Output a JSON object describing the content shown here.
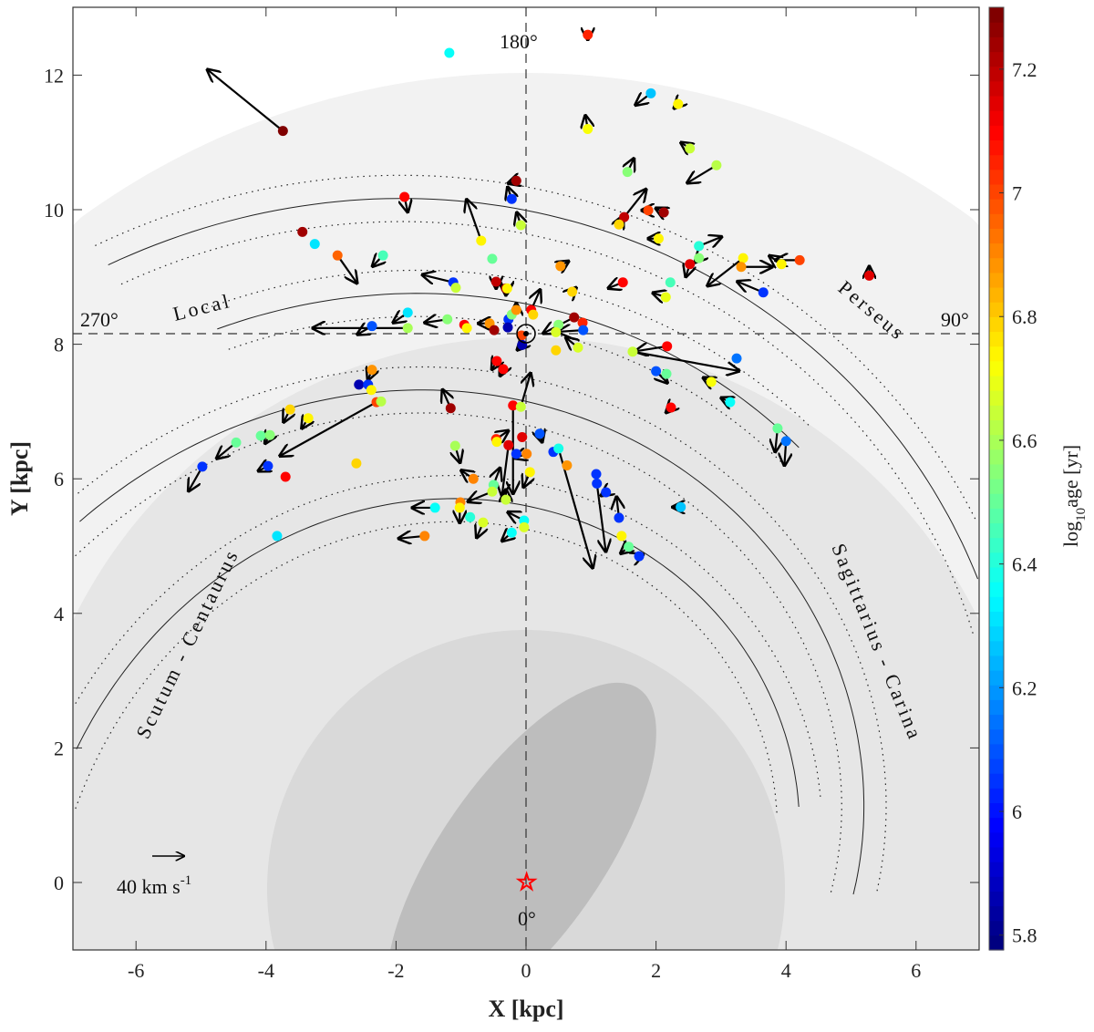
{
  "chart_data": {
    "type": "scatter",
    "xlabel": "X [kpc]",
    "ylabel": "Y [kpc]",
    "xlim": [
      -7,
      7
    ],
    "ylim": [
      -1,
      13
    ],
    "xticks": [
      "-6",
      "-4",
      "-2",
      "0",
      "2",
      "4",
      "6"
    ],
    "yticks": [
      "0",
      "2",
      "4",
      "6",
      "8",
      "10",
      "12"
    ],
    "colorbar": {
      "label_main": "log",
      "label_sub": "10",
      "label_rest": "age [yr]",
      "range": [
        5.776,
        7.3
      ],
      "ticks": [
        "5.8",
        "6",
        "6.2",
        "6.4",
        "6.6",
        "6.8",
        "7",
        "7.2"
      ],
      "colormap": "jet"
    },
    "sun": {
      "x": 0,
      "y": 8.15
    },
    "galactic_center": {
      "x": 0,
      "y": 0,
      "color": "#ff0000"
    },
    "longitude_labels": {
      "l180": "180°",
      "l270": "270°",
      "l90": "90°",
      "l0": "0°"
    },
    "arm_labels": {
      "local": "Local",
      "perseus": "Perseus",
      "sagittarius": "Sagittarius - Carina",
      "scutum": "Scutum - Centaurus"
    },
    "arms": [
      {
        "name": "Perseus",
        "r_at_sun_dir": 9.99,
        "tan_pitch": 0.188,
        "range_deg": [
          -35,
          62
        ]
      },
      {
        "name": "Local",
        "r_at_sun_dir": 8.6,
        "tan_pitch": 0.19,
        "range_deg": [
          -30,
          33
        ]
      },
      {
        "name": "Sagittarius-Carina",
        "r_at_sun_dir": 7.15,
        "tan_pitch": 0.218,
        "range_deg": [
          -60,
          92
        ]
      },
      {
        "name": "Scutum-Centaurus",
        "r_at_sun_dir": 5.6,
        "tan_pitch": 0.194,
        "range_deg": [
          -82,
          75
        ]
      }
    ],
    "scale_arrow": {
      "value_kms": 40,
      "label": "40 km s",
      "label_exp": "-1"
    },
    "fields": [
      "x_kpc",
      "y_kpc",
      "log10_age",
      "vx_kms",
      "vy_kms"
    ],
    "points": [
      [
        -3.74,
        11.17,
        7.3,
        -93,
        73
      ],
      [
        -1.18,
        12.33,
        6.35,
        0,
        0
      ],
      [
        0.95,
        12.6,
        7.05,
        0,
        -6
      ],
      [
        1.92,
        11.73,
        6.25,
        -19,
        -14
      ],
      [
        2.34,
        11.57,
        6.75,
        -5,
        -5
      ],
      [
        0.95,
        11.2,
        6.72,
        -3,
        16
      ],
      [
        2.52,
        10.91,
        6.65,
        -11,
        7
      ],
      [
        2.93,
        10.66,
        6.62,
        -36,
        -21
      ],
      [
        1.56,
        10.56,
        6.55,
        8,
        16
      ],
      [
        -0.15,
        10.43,
        7.25,
        -10,
        -3
      ],
      [
        -0.22,
        10.16,
        6.05,
        -5,
        14
      ],
      [
        -1.87,
        10.19,
        7.1,
        4,
        -18
      ],
      [
        -0.08,
        9.77,
        6.65,
        -5,
        15
      ],
      [
        1.51,
        9.89,
        7.2,
        27,
        33
      ],
      [
        1.88,
        9.99,
        7.0,
        -8,
        0
      ],
      [
        2.12,
        9.96,
        7.25,
        -10,
        5
      ],
      [
        1.43,
        9.78,
        6.8,
        5,
        10
      ],
      [
        2.04,
        9.57,
        6.75,
        -13,
        0
      ],
      [
        -3.44,
        9.67,
        7.25,
        0,
        0
      ],
      [
        -3.25,
        9.49,
        6.3,
        0,
        0
      ],
      [
        -2.9,
        9.32,
        6.95,
        24,
        -33
      ],
      [
        -2.2,
        9.32,
        6.45,
        -13,
        -13
      ],
      [
        -0.69,
        9.54,
        6.75,
        -18,
        49
      ],
      [
        -0.52,
        9.27,
        6.5,
        0,
        0
      ],
      [
        2.66,
        9.46,
        6.4,
        28,
        11
      ],
      [
        2.66,
        9.28,
        6.55,
        -5,
        -5
      ],
      [
        2.52,
        9.19,
        7.15,
        -5,
        -15
      ],
      [
        3.34,
        9.28,
        6.75,
        -44,
        -33
      ],
      [
        3.31,
        9.15,
        6.9,
        38,
        0
      ],
      [
        3.93,
        9.19,
        6.75,
        -15,
        10
      ],
      [
        4.21,
        9.25,
        7.0,
        -30,
        0
      ],
      [
        5.28,
        9.02,
        7.15,
        0,
        11
      ],
      [
        3.65,
        8.77,
        6.05,
        -32,
        13
      ],
      [
        -1.12,
        8.92,
        6.05,
        -38,
        9
      ],
      [
        -1.08,
        8.84,
        6.65,
        0,
        0
      ],
      [
        -0.31,
        8.83,
        7.25,
        0,
        -8
      ],
      [
        -0.46,
        8.93,
        7.2,
        0,
        -8
      ],
      [
        -0.29,
        8.83,
        6.75,
        0,
        -6
      ],
      [
        0.53,
        9.16,
        6.9,
        10,
        6
      ],
      [
        0.71,
        8.78,
        6.8,
        5,
        5
      ],
      [
        1.49,
        8.92,
        7.1,
        -18,
        -7
      ],
      [
        2.22,
        8.92,
        6.45,
        0,
        0
      ],
      [
        2.15,
        8.7,
        6.7,
        -16,
        5
      ],
      [
        -1.82,
        8.47,
        6.3,
        -18,
        -12
      ],
      [
        -1.82,
        8.24,
        6.6,
        -117,
        0
      ],
      [
        -2.37,
        8.27,
        6.1,
        -18,
        -10
      ],
      [
        -1.21,
        8.37,
        6.55,
        -28,
        -4
      ],
      [
        -0.95,
        8.29,
        7.1,
        0,
        0
      ],
      [
        -0.91,
        8.24,
        6.75,
        0,
        0
      ],
      [
        -0.56,
        8.31,
        6.9,
        -14,
        0
      ],
      [
        -0.49,
        8.21,
        7.25,
        0,
        0
      ],
      [
        -0.27,
        8.37,
        6.05,
        0,
        0
      ],
      [
        -0.28,
        8.25,
        5.85,
        0,
        0
      ],
      [
        -0.22,
        8.44,
        6.55,
        0,
        0
      ],
      [
        -0.15,
        8.51,
        6.9,
        0,
        8
      ],
      [
        0.08,
        8.51,
        7.1,
        11,
        24
      ],
      [
        0.11,
        8.44,
        6.8,
        0,
        0
      ],
      [
        -0.07,
        8.13,
        7.0,
        0,
        0
      ],
      [
        -0.06,
        7.99,
        5.85,
        -6,
        -6
      ],
      [
        0.74,
        8.4,
        7.25,
        -38,
        -19
      ],
      [
        0.87,
        8.32,
        7.05,
        0,
        0
      ],
      [
        0.5,
        8.29,
        6.55,
        0,
        0
      ],
      [
        0.46,
        8.18,
        6.68,
        0,
        0
      ],
      [
        0.88,
        8.21,
        6.1,
        -31,
        -2
      ],
      [
        0.46,
        7.91,
        6.78,
        0,
        0
      ],
      [
        0.8,
        7.95,
        6.67,
        -15,
        12
      ],
      [
        -0.45,
        7.75,
        7.1,
        -6,
        -10
      ],
      [
        -0.35,
        7.63,
        7.1,
        -4,
        -8
      ],
      [
        2.17,
        7.97,
        7.1,
        -39,
        -6
      ],
      [
        1.64,
        7.89,
        6.65,
        131,
        -23
      ],
      [
        3.24,
        7.79,
        6.15,
        0,
        0
      ],
      [
        2.0,
        7.6,
        6.1,
        14,
        -14
      ],
      [
        2.16,
        7.56,
        6.5,
        0,
        0
      ],
      [
        2.85,
        7.44,
        6.72,
        -10,
        5
      ],
      [
        3.14,
        7.14,
        6.35,
        -11,
        5
      ],
      [
        2.23,
        7.06,
        7.1,
        -6,
        -6
      ],
      [
        3.87,
        6.75,
        6.5,
        -3,
        -28
      ],
      [
        4.0,
        6.56,
        6.15,
        -2,
        -29
      ],
      [
        -2.37,
        7.62,
        6.9,
        -5,
        -12
      ],
      [
        -2.57,
        7.4,
        5.85,
        0,
        0
      ],
      [
        -2.43,
        7.4,
        6.05,
        0,
        0
      ],
      [
        -2.38,
        7.32,
        6.75,
        0,
        0
      ],
      [
        -2.3,
        7.14,
        7.0,
        -119,
        -64
      ],
      [
        -2.23,
        7.15,
        6.62,
        0,
        0
      ],
      [
        -3.63,
        7.03,
        6.78,
        -8,
        -15
      ],
      [
        -3.35,
        6.9,
        6.75,
        -8,
        -12
      ],
      [
        -4.08,
        6.64,
        6.5,
        0,
        0
      ],
      [
        -3.94,
        6.65,
        6.55,
        -6,
        -10
      ],
      [
        -4.46,
        6.54,
        6.5,
        -24,
        -19
      ],
      [
        -3.97,
        6.19,
        6.05,
        -12,
        -6
      ],
      [
        -3.7,
        6.03,
        7.1,
        0,
        0
      ],
      [
        -4.98,
        6.18,
        6.05,
        -17,
        -29
      ],
      [
        -2.61,
        6.23,
        6.8,
        0,
        0
      ],
      [
        -1.16,
        7.05,
        7.25,
        -10,
        22
      ],
      [
        -0.2,
        7.09,
        7.1,
        0,
        -105
      ],
      [
        -0.08,
        7.07,
        6.65,
        12,
        40
      ],
      [
        -0.46,
        6.59,
        7.05,
        15,
        10
      ],
      [
        -0.45,
        6.55,
        6.75,
        0,
        0
      ],
      [
        -0.06,
        6.62,
        7.15,
        0,
        0
      ],
      [
        -0.27,
        6.5,
        7.15,
        -8,
        -60
      ],
      [
        -0.15,
        6.37,
        6.05,
        0,
        0
      ],
      [
        0.01,
        6.37,
        6.92,
        -15,
        -5
      ],
      [
        0.21,
        6.67,
        6.1,
        3,
        -10
      ],
      [
        0.42,
        6.4,
        6.05,
        0,
        0
      ],
      [
        0.5,
        6.45,
        6.38,
        42,
        -142
      ],
      [
        0.63,
        6.2,
        6.9,
        0,
        0
      ],
      [
        0.06,
        6.1,
        6.75,
        -8,
        -18
      ],
      [
        -1.09,
        6.49,
        6.6,
        6,
        -20
      ],
      [
        -0.81,
        6.0,
        6.92,
        -15,
        10
      ],
      [
        -0.5,
        5.91,
        6.5,
        8,
        20
      ],
      [
        -0.52,
        5.81,
        6.65,
        -30,
        -12
      ],
      [
        -0.31,
        5.69,
        6.65,
        0,
        12
      ],
      [
        -1.01,
        5.65,
        6.92,
        0,
        0
      ],
      [
        -1.02,
        5.57,
        6.75,
        0,
        -18
      ],
      [
        -1.4,
        5.57,
        6.35,
        -28,
        0
      ],
      [
        -0.86,
        5.43,
        6.4,
        0,
        0
      ],
      [
        -0.66,
        5.35,
        6.68,
        -8,
        -18
      ],
      [
        -0.22,
        5.2,
        6.35,
        -12,
        -10
      ],
      [
        -0.03,
        5.38,
        6.35,
        -20,
        10
      ],
      [
        -0.03,
        5.28,
        6.68,
        0,
        0
      ],
      [
        -1.56,
        5.15,
        6.92,
        -32,
        -3
      ],
      [
        -3.83,
        5.15,
        6.3,
        0,
        0
      ],
      [
        1.08,
        6.07,
        6.05,
        0,
        0
      ],
      [
        1.09,
        5.93,
        6.05,
        11,
        -81
      ],
      [
        1.23,
        5.8,
        6.05,
        -6,
        -4
      ],
      [
        1.43,
        5.42,
        6.05,
        -3,
        25
      ],
      [
        1.47,
        5.15,
        6.75,
        0,
        0
      ],
      [
        1.58,
        4.99,
        6.5,
        -10,
        -8
      ],
      [
        1.74,
        4.85,
        6.05,
        5,
        2
      ],
      [
        2.38,
        5.58,
        6.25,
        -10,
        0
      ]
    ]
  }
}
